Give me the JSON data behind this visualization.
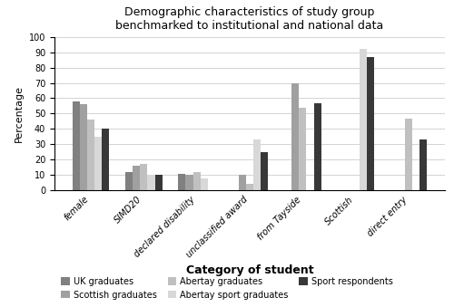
{
  "title": "Demographic characteristics of study group\nbenchmarked to institutional and national data",
  "xlabel": "Category of student",
  "ylabel": "Percentage",
  "categories": [
    "female",
    "SIMD20",
    "declared disability",
    "unclassified award",
    "from Tayside",
    "Scottish",
    "direct entry"
  ],
  "series": {
    "UK graduates": [
      58,
      12,
      11,
      0,
      0,
      0,
      0
    ],
    "Scottish graduates": [
      56,
      16,
      10,
      10,
      70,
      0,
      0
    ],
    "Abertay graduates": [
      46,
      17,
      12,
      4,
      54,
      0,
      47
    ],
    "Abertay sport graduates": [
      35,
      10,
      8,
      33,
      0,
      92,
      0
    ],
    "Sport respondents": [
      40,
      10,
      0,
      25,
      57,
      87,
      33
    ]
  },
  "colors": {
    "UK graduates": "#808080",
    "Scottish graduates": "#a0a0a0",
    "Abertay graduates": "#c0c0c0",
    "Abertay sport graduates": "#d8d8d8",
    "Sport respondents": "#383838"
  },
  "ylim": [
    0,
    100
  ],
  "yticks": [
    0,
    10,
    20,
    30,
    40,
    50,
    60,
    70,
    80,
    90,
    100
  ],
  "legend_order": [
    "UK graduates",
    "Scottish graduates",
    "Abertay graduates",
    "Abertay sport graduates",
    "Sport respondents"
  ],
  "figsize": [
    5.0,
    3.39
  ],
  "dpi": 100
}
